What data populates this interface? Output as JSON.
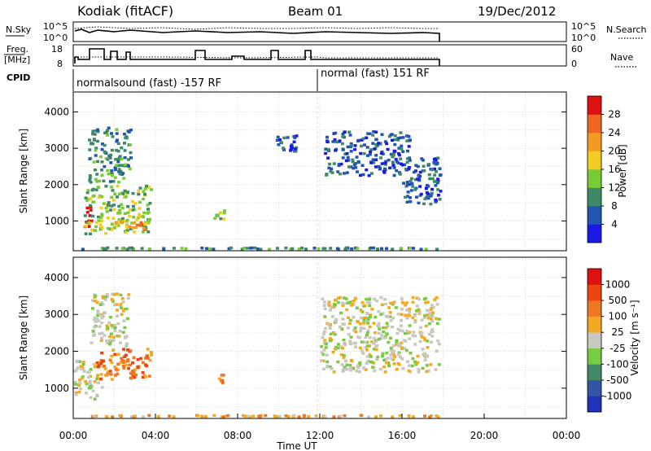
{
  "header": {
    "radar": "Kodiak (fitACF)",
    "beam": "Beam 01",
    "date": "19/Dec/2012"
  },
  "noise_panel": {
    "left_label": "N.Sky",
    "right_label": "N.Search",
    "left_ticks": [
      "10^5",
      "10^0"
    ],
    "right_ticks": [
      "10^5",
      "10^0"
    ]
  },
  "freq_panel": {
    "left_label_1": "Freq.",
    "left_label_2": "[MHz]",
    "right_label": "Nave",
    "left_ticks": [
      "18",
      "8"
    ],
    "right_ticks": [
      "60",
      "0"
    ]
  },
  "cpid": {
    "label": "CPID",
    "segment1": "normalsound (fast) -157 RF",
    "segment2": "normal (fast) 151 RF",
    "switch_time_hours": 12.0
  },
  "chart_data": [
    {
      "type": "heatmap",
      "name": "Power",
      "ylabel": "Slant Range [km]",
      "ylim": [
        180,
        4550
      ],
      "yticks": [
        1000,
        2000,
        3000,
        4000
      ],
      "xlim_hours": [
        0,
        24
      ],
      "colorbar": {
        "label": "Power [dB]",
        "ticks": [
          "4",
          "8",
          "12",
          "16",
          "20",
          "24",
          "28"
        ],
        "colors": [
          "#1a1ae6",
          "#2255b0",
          "#3e8a66",
          "#77cc33",
          "#f2cc22",
          "#f29a22",
          "#ee6622",
          "#dd1111"
        ]
      },
      "regions": [
        {
          "t": [
            0.5,
            1.0
          ],
          "r": [
            750,
            1500
          ],
          "level": 7
        },
        {
          "t": [
            0.5,
            3.9
          ],
          "r": [
            600,
            2000
          ],
          "level": 3
        },
        {
          "t": [
            0.7,
            2.9
          ],
          "r": [
            2000,
            3600
          ],
          "level": 2
        },
        {
          "t": [
            2.0,
            3.6
          ],
          "r": [
            700,
            1000
          ],
          "level": 5
        },
        {
          "t": [
            6.8,
            7.5
          ],
          "r": [
            1000,
            1400
          ],
          "level": 3
        },
        {
          "t": [
            9.8,
            11.0
          ],
          "r": [
            2800,
            3400
          ],
          "level": 1
        },
        {
          "t": [
            12.2,
            16.5
          ],
          "r": [
            2200,
            3500
          ],
          "level": 1
        },
        {
          "t": [
            16.0,
            18.0
          ],
          "r": [
            1400,
            2800
          ],
          "level": 1
        },
        {
          "t": [
            0.0,
            18.0
          ],
          "r": [
            180,
            300
          ],
          "level": 2
        }
      ]
    },
    {
      "type": "heatmap",
      "name": "Velocity",
      "ylabel": "Slant Range [km]",
      "ylim": [
        180,
        4550
      ],
      "yticks": [
        1000,
        2000,
        3000,
        4000
      ],
      "xlim_hours": [
        0,
        24
      ],
      "xticks": [
        "00:00",
        "04:00",
        "08:00",
        "12:00",
        "16:00",
        "20:00",
        "00:00"
      ],
      "xlabel": "Time UT",
      "colorbar": {
        "label": "Velocity [m s⁻¹]",
        "ticks": [
          "1000",
          "500",
          "100",
          "25",
          "-25",
          "-100",
          "-500",
          "-1000"
        ],
        "colors": [
          "#2233bb",
          "#3355a5",
          "#448866",
          "#77cc44",
          "#c8c8c0",
          "#f2aa22",
          "#ee7722",
          "#ee4411",
          "#dd1111"
        ]
      },
      "regions": [
        {
          "t": [
            0.0,
            1.5
          ],
          "r": [
            650,
            1800
          ],
          "level": 4
        },
        {
          "t": [
            1.0,
            3.9
          ],
          "r": [
            1200,
            2100
          ],
          "level": 6
        },
        {
          "t": [
            0.8,
            2.8
          ],
          "r": [
            2100,
            3600
          ],
          "level": 4
        },
        {
          "t": [
            7.0,
            7.6
          ],
          "r": [
            1100,
            1400
          ],
          "level": 6
        },
        {
          "t": [
            12.0,
            17.9
          ],
          "r": [
            1400,
            3500
          ],
          "level": 4
        },
        {
          "t": [
            0.0,
            18.0
          ],
          "r": [
            180,
            300
          ],
          "level": 5
        }
      ]
    }
  ],
  "colors": {
    "grid": "#c8c8c8",
    "axis": "#000000"
  }
}
